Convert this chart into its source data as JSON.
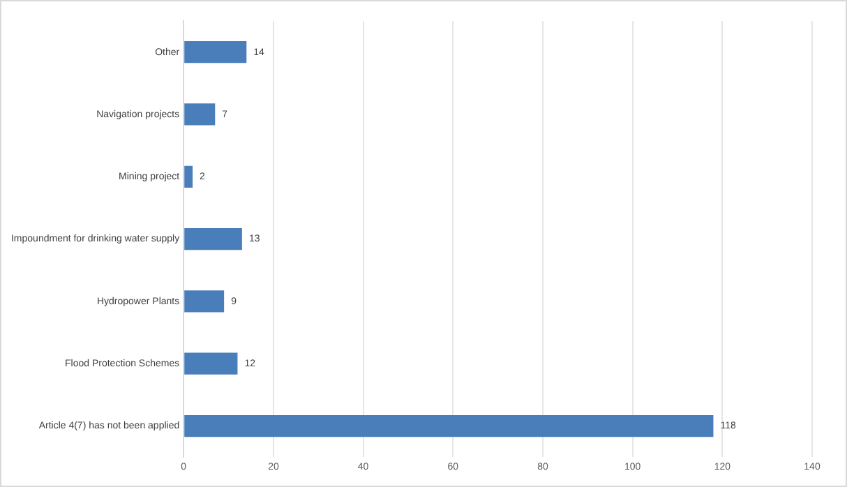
{
  "chart_data": {
    "type": "bar",
    "orientation": "horizontal",
    "categories": [
      "Other",
      "Navigation projects",
      "Mining project",
      "Impoundment for drinking water supply",
      "Hydropower Plants",
      "Flood Protection Schemes",
      "Article 4(7) has not been applied"
    ],
    "values": [
      14,
      7,
      2,
      13,
      9,
      12,
      118
    ],
    "color": "#4a7ebb",
    "xlim": [
      0,
      140
    ],
    "xticks": [
      0,
      20,
      40,
      60,
      80,
      100,
      120,
      140
    ],
    "grid": "x",
    "data_labels": true,
    "legend": false
  }
}
